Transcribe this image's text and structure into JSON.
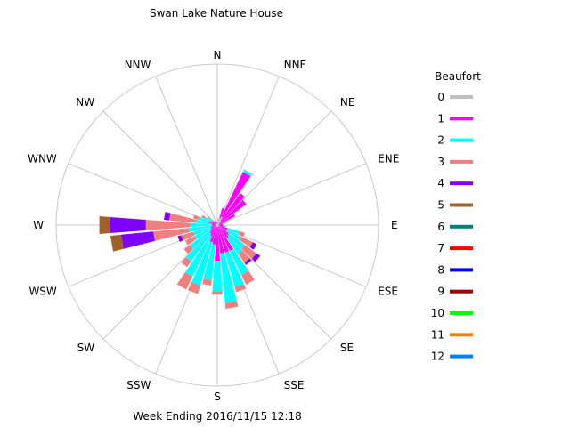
{
  "chart_data": {
    "type": "wind-rose",
    "title": "Swan Lake Nature House",
    "footer": "Week Ending 2016/11/15 12:18",
    "legend_title": "Beaufort",
    "legend_placement": "right",
    "directions": [
      "N",
      "NNE",
      "NE",
      "ENE",
      "E",
      "ESE",
      "SE",
      "SSE",
      "S",
      "SSW",
      "SW",
      "WSW",
      "W",
      "WNW",
      "NW",
      "NNW"
    ],
    "beaufort": [
      {
        "level": "0",
        "color": "#c0c0c0"
      },
      {
        "level": "1",
        "color": "#ff00ff"
      },
      {
        "level": "2",
        "color": "#00ffff"
      },
      {
        "level": "3",
        "color": "#f08080"
      },
      {
        "level": "4",
        "color": "#8000ff"
      },
      {
        "level": "5",
        "color": "#a0602a"
      },
      {
        "level": "6",
        "color": "#008080"
      },
      {
        "level": "7",
        "color": "#ff0000"
      },
      {
        "level": "8",
        "color": "#0000ff"
      },
      {
        "level": "9",
        "color": "#a00000"
      },
      {
        "level": "10",
        "color": "#00ff00"
      },
      {
        "level": "11",
        "color": "#ff8000"
      },
      {
        "level": "12",
        "color": "#0080ff"
      }
    ],
    "bearings_deg": [
      0,
      10,
      20,
      30,
      40,
      50,
      60,
      70,
      80,
      90,
      100,
      110,
      120,
      130,
      140,
      150,
      160,
      170,
      180,
      190,
      200,
      210,
      220,
      230,
      240,
      250,
      260,
      270,
      280,
      290,
      300,
      310,
      320,
      330,
      340,
      350
    ],
    "segments_by_bearing": [
      [
        2,
        1,
        0,
        0,
        0,
        0
      ],
      [
        6,
        1,
        0,
        0,
        0,
        0
      ],
      [
        8,
        12,
        0,
        0,
        0,
        0
      ],
      [
        10,
        56,
        3,
        0,
        0,
        0
      ],
      [
        6,
        38,
        0,
        0,
        0,
        0
      ],
      [
        4,
        36,
        0,
        0,
        0,
        0
      ],
      [
        2,
        20,
        0,
        0,
        0,
        0
      ],
      [
        2,
        8,
        0,
        0,
        0,
        0
      ],
      [
        2,
        4,
        0,
        0,
        0,
        0
      ],
      [
        2,
        4,
        0,
        0,
        0,
        0
      ],
      [
        2,
        6,
        2,
        0,
        0,
        0
      ],
      [
        2,
        10,
        14,
        6,
        0,
        0
      ],
      [
        2,
        10,
        18,
        14,
        5,
        0
      ],
      [
        2,
        14,
        22,
        16,
        5,
        0
      ],
      [
        2,
        16,
        22,
        12,
        3,
        0
      ],
      [
        2,
        30,
        30,
        12,
        0,
        0
      ],
      [
        2,
        30,
        40,
        6,
        0,
        0
      ],
      [
        2,
        30,
        56,
        6,
        0,
        0
      ],
      [
        2,
        38,
        34,
        4,
        0,
        0
      ],
      [
        2,
        20,
        40,
        6,
        0,
        0
      ],
      [
        2,
        18,
        50,
        10,
        0,
        0
      ],
      [
        2,
        12,
        50,
        16,
        0,
        0
      ],
      [
        2,
        10,
        38,
        8,
        0,
        0
      ],
      [
        2,
        8,
        28,
        8,
        0,
        0
      ],
      [
        2,
        6,
        20,
        12,
        0,
        0
      ],
      [
        2,
        6,
        20,
        14,
        4,
        0
      ],
      [
        2,
        4,
        26,
        40,
        36,
        12
      ],
      [
        2,
        4,
        24,
        50,
        40,
        12
      ],
      [
        2,
        4,
        18,
        30,
        6,
        0
      ],
      [
        2,
        8,
        12,
        6,
        0,
        0
      ],
      [
        2,
        6,
        8,
        4,
        0,
        0
      ],
      [
        2,
        4,
        6,
        2,
        0,
        0
      ],
      [
        2,
        2,
        4,
        0,
        0,
        0
      ],
      [
        2,
        2,
        2,
        0,
        0,
        0
      ],
      [
        2,
        2,
        0,
        0,
        0,
        0
      ],
      [
        2,
        2,
        0,
        0,
        0,
        0
      ]
    ],
    "radial_max": 180,
    "grid": true
  }
}
